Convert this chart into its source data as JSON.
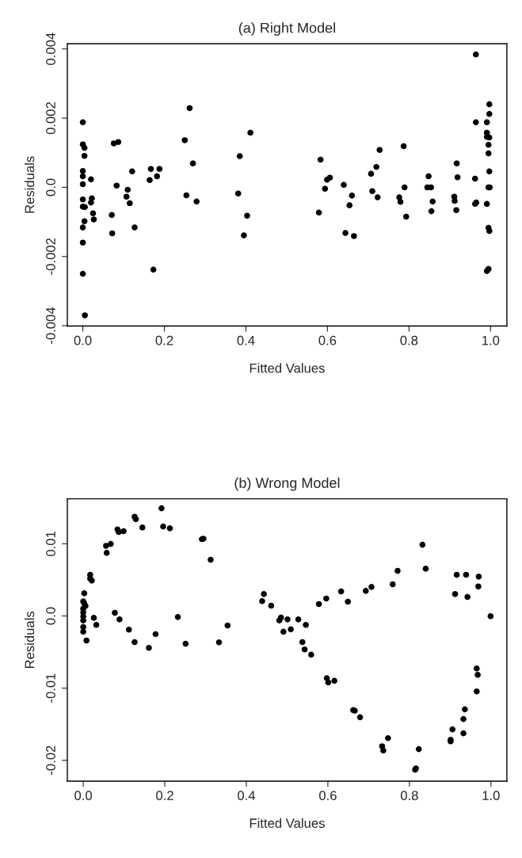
{
  "chart_data": [
    {
      "type": "scatter",
      "title": "(a) Right Model",
      "xlabel": "Fitted Values",
      "ylabel": "Residuals",
      "marker": "circle",
      "grid": false,
      "legend": false,
      "xlim": [
        -0.038,
        1.04
      ],
      "ylim": [
        -0.00401,
        0.00415
      ],
      "xticks": [
        {
          "value": 0,
          "label": "0.0"
        },
        {
          "value": 0.2,
          "label": "0.2"
        },
        {
          "value": 0.4,
          "label": "0.4"
        },
        {
          "value": 0.6,
          "label": "0.6"
        },
        {
          "value": 0.8,
          "label": "0.8"
        },
        {
          "value": 1,
          "label": "1.0"
        }
      ],
      "yticks": [
        {
          "value": -0.004,
          "label": "-0.004"
        },
        {
          "value": -0.002,
          "label": "-0.002"
        },
        {
          "value": 0,
          "label": "0.0"
        },
        {
          "value": 0.002,
          "label": "0.002"
        },
        {
          "value": 0.004,
          "label": "0.004"
        }
      ],
      "series": [
        {
          "color": "#000000",
          "x": [
            0,
            0,
            0.004,
            0.004,
            0,
            0,
            0.02,
            0,
            0,
            0.022,
            0.02,
            0,
            0.005,
            0.025,
            0.027,
            0.004,
            0,
            0,
            0,
            0.005,
            0.076,
            0.087,
            0.083,
            0.071,
            0.072,
            0.121,
            0.11,
            0.107,
            0.115,
            0.127,
            0.167,
            0.188,
            0.182,
            0.164,
            0.173,
            0.262,
            0.25,
            0.27,
            0.254,
            0.279,
            0.385,
            0.381,
            0.403,
            0.395,
            0.411,
            0.583,
            0.579,
            0.599,
            0.606,
            0.594,
            0.64,
            0.66,
            0.654,
            0.644,
            0.665,
            0.707,
            0.72,
            0.728,
            0.71,
            0.723,
            0.787,
            0.789,
            0.776,
            0.779,
            0.793,
            0.848,
            0.845,
            0.854,
            0.858,
            0.855,
            0.917,
            0.919,
            0.911,
            0.912,
            0.916,
            0.964,
            0.964,
            0.962,
            0.962,
            0.965,
            0.991,
            0.997,
            0.997,
            0.991,
            0.991,
            0.997,
            0.995,
            0.995,
            0.997,
            0.998,
            0.995,
            0.991,
            0.995,
            0.997,
            0.995,
            0.991
          ],
          "values": [
            0.00188,
            0.00124,
            0.00114,
            0.00091,
            0.00047,
            0.00032,
            0.00023,
            9e-05,
            -0.00035,
            -0.00032,
            -0.00044,
            -0.00056,
            -0.00057,
            -0.00075,
            -0.00093,
            -0.00098,
            -0.00116,
            -0.0016,
            -0.0025,
            -0.0037,
            0.00127,
            0.00131,
            5e-05,
            -0.0008,
            -0.00133,
            0.00046,
            -7e-05,
            -0.00027,
            -0.00046,
            -0.00116,
            0.00053,
            0.00053,
            0.00032,
            0.00021,
            -0.00238,
            0.00229,
            0.00136,
            0.00069,
            -0.00023,
            -0.00041,
            0.0009,
            -0.00018,
            -0.00082,
            -0.00139,
            0.00158,
            0.0008,
            -0.00073,
            0.00022,
            0.00028,
            -4e-05,
            7e-05,
            -0.00024,
            -0.00052,
            -0.00132,
            -0.00141,
            0.00039,
            0.00059,
            0.00108,
            -0.00011,
            -0.00029,
            0.00119,
            0.0,
            -0.00029,
            -0.00042,
            -0.00085,
            0.00032,
            0.0,
            0.0,
            -0.00041,
            -0.00069,
            0.00069,
            0.00029,
            -0.00027,
            -0.00039,
            -0.00066,
            0.00384,
            0.00188,
            0.00025,
            -0.00048,
            -0.00044,
            0.00188,
            0.0024,
            0.00212,
            0.00158,
            0.00146,
            0.00144,
            0.00123,
            0.00098,
            0.00046,
            0.0,
            0.0,
            -0.00048,
            -0.00117,
            -0.00126,
            -0.00236,
            -0.00242
          ]
        }
      ]
    },
    {
      "type": "scatter",
      "title": "(b) Wrong Model",
      "xlabel": "Fitted Values",
      "ylabel": "Residuals",
      "marker": "circle",
      "grid": false,
      "legend": false,
      "xlim": [
        -0.039,
        1.039
      ],
      "ylim": [
        -0.02289,
        0.01623
      ],
      "xticks": [
        {
          "value": 0,
          "label": "0.0"
        },
        {
          "value": 0.2,
          "label": "0.2"
        },
        {
          "value": 0.4,
          "label": "0.4"
        },
        {
          "value": 0.6,
          "label": "0.6"
        },
        {
          "value": 0.8,
          "label": "0.8"
        },
        {
          "value": 1,
          "label": "1.0"
        }
      ],
      "yticks": [
        {
          "value": -0.02,
          "label": "-0.02"
        },
        {
          "value": -0.01,
          "label": "-0.01"
        },
        {
          "value": 0,
          "label": "0.0"
        },
        {
          "value": 0.01,
          "label": "0.01"
        }
      ],
      "series": [
        {
          "color": "#000000",
          "x": [
            0.192,
            0.126,
            0.129,
            0.145,
            0.196,
            0.2125,
            0.084,
            0.087,
            0.099,
            0.056,
            0.0675,
            0.0575,
            0.291,
            0.295,
            0.3125,
            0.017,
            0.017,
            0.021,
            0.0025,
            0,
            0.0025,
            0.0056,
            0,
            0,
            0,
            0,
            0,
            0,
            0.008,
            0.026,
            0.032,
            0.0775,
            0.089,
            0.112,
            0.126,
            0.161,
            0.1775,
            0.232,
            0.251,
            0.333,
            0.354,
            0.4431,
            0.4388,
            0.461,
            0.481,
            0.485,
            0.501,
            0.491,
            0.509,
            0.5275,
            0.546,
            0.5375,
            0.543,
            0.559,
            0.578,
            0.596,
            0.6325,
            0.649,
            0.693,
            0.707,
            0.759,
            0.771,
            0.5975,
            0.601,
            0.616,
            0.662,
            0.666,
            0.679,
            0.733,
            0.736,
            0.7475,
            0.832,
            0.84,
            0.814,
            0.816,
            0.823,
            0.916,
            0.939,
            0.97,
            0.969,
            0.912,
            0.9425,
            0.999,
            0.965,
            0.9675,
            0.965,
            0.936,
            0.9325,
            0.9325,
            0.9056,
            0.901,
            0.901
          ],
          "values": [
            0.01492,
            0.01375,
            0.01342,
            0.01225,
            0.01239,
            0.01214,
            0.01199,
            0.01163,
            0.01174,
            0.00972,
            0.00998,
            0.00874,
            0.01064,
            0.01071,
            0.00779,
            0.0057,
            0.00519,
            0.0049,
            0.00314,
            0.00201,
            0.00175,
            0.00139,
            0.00102,
            0.00048,
            -7e-05,
            -0.00062,
            -0.00154,
            -0.00219,
            -0.0034,
            -0.00026,
            -0.00124,
            0.00044,
            -0.00048,
            -0.0019,
            -0.00362,
            -0.00442,
            -0.00252,
            -0.00015,
            -0.00384,
            -0.00366,
            -0.00132,
            0.00303,
            0.00205,
            0.00143,
            -0.00062,
            -0.00022,
            -0.00048,
            -0.00219,
            -0.00186,
            -0.00048,
            -0.00124,
            -0.00362,
            -0.00464,
            -0.00537,
            0.00165,
            0.00241,
            0.0034,
            0.00197,
            0.00347,
            0.00402,
            0.00439,
            0.00625,
            -0.00863,
            -0.00921,
            -0.00899,
            -0.01305,
            -0.01313,
            -0.01404,
            -0.01806,
            -0.01865,
            -0.01693,
            0.00987,
            0.00654,
            -0.02131,
            -0.02113,
            -0.01846,
            0.0057,
            0.0057,
            0.00545,
            0.00409,
            0.00303,
            0.00263,
            -4e-05,
            -0.00728,
            -0.00815,
            -0.01046,
            -0.01294,
            -0.01429,
            -0.01627,
            -0.01572,
            -0.01715,
            -0.01737
          ]
        }
      ]
    }
  ]
}
